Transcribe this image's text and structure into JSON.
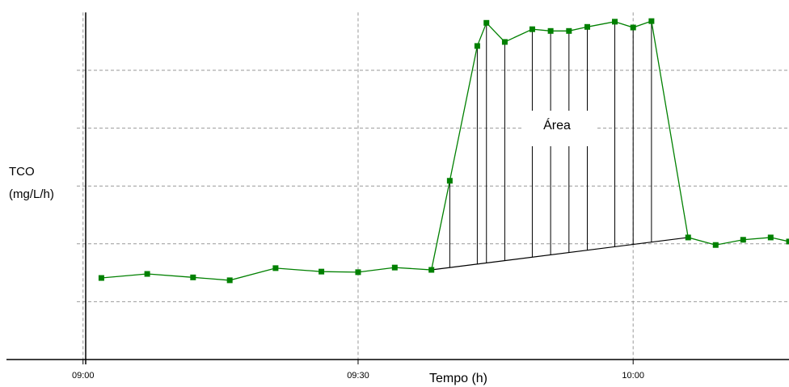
{
  "chart_data": {
    "type": "line",
    "y_label": [
      "TCO",
      "(mg/L/h)"
    ],
    "x_label": "Tempo (h)",
    "annotation": "Área",
    "x": [
      "09:02",
      "09:07",
      "09:12",
      "09:16",
      "09:21",
      "09:26",
      "09:30",
      "09:34",
      "09:38",
      "09:40",
      "09:43",
      "09:44",
      "09:46",
      "09:49",
      "09:51",
      "09:53",
      "09:55",
      "09:58",
      "10:00",
      "10:02",
      "10:06",
      "10:09",
      "10:12",
      "10:15",
      "10:17"
    ],
    "values": [
      1.41,
      1.48,
      1.42,
      1.37,
      1.58,
      1.52,
      1.51,
      1.59,
      1.55,
      3.09,
      5.42,
      5.82,
      5.49,
      5.71,
      5.68,
      5.68,
      5.75,
      5.84,
      5.74,
      5.85,
      2.11,
      1.98,
      2.07,
      2.11,
      2.04
    ],
    "color": "#008000",
    "xlim": [
      "08:52",
      "10:17"
    ],
    "xticks": [
      "09:00",
      "09:30",
      "10:00"
    ],
    "ylim": [
      0,
      6
    ],
    "yticks": [
      1,
      2,
      3,
      4,
      5
    ],
    "grid": true
  }
}
